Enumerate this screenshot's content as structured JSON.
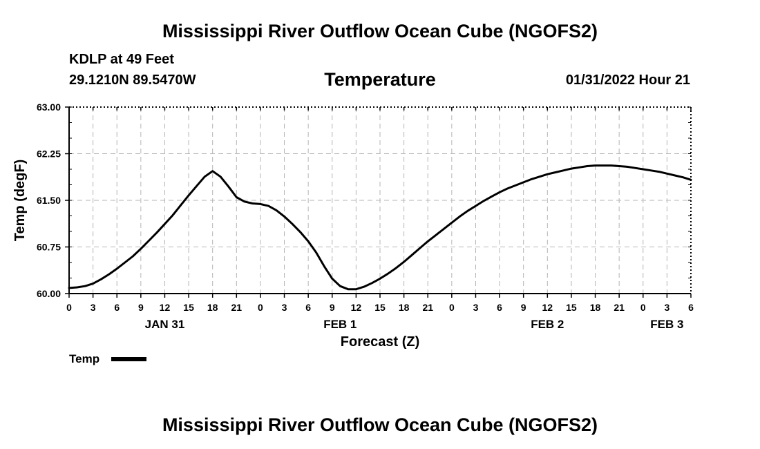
{
  "header": {
    "title": "Mississippi River Outflow Ocean Cube (NGOFS2)",
    "station": "KDLP at 49 Feet",
    "coords": "29.1210N  89.5470W",
    "chart_title": "Temperature",
    "datetime": "01/31/2022 Hour 21"
  },
  "footer": {
    "title": "Mississippi River Outflow Ocean Cube (NGOFS2)"
  },
  "colors": {
    "line": "#000000",
    "grid": "#b4b4b4"
  },
  "chart_data": {
    "type": "line",
    "title": "Temperature",
    "xlabel": "Forecast (Z)",
    "ylabel": "Temp (degF)",
    "xlim": [
      0,
      78
    ],
    "ylim": [
      60.0,
      63.0
    ],
    "y_ticks": [
      "60.00",
      "60.75",
      "61.50",
      "62.25",
      "63.00"
    ],
    "x_ticks": [
      "0",
      "3",
      "6",
      "9",
      "12",
      "15",
      "18",
      "21",
      "0",
      "3",
      "6",
      "9",
      "12",
      "15",
      "18",
      "21",
      "0",
      "3",
      "6",
      "9",
      "12",
      "15",
      "18",
      "21",
      "0",
      "3",
      "6"
    ],
    "day_labels": [
      {
        "label": "JAN 31",
        "hour": 12
      },
      {
        "label": "FEB 1",
        "hour": 34
      },
      {
        "label": "FEB 2",
        "hour": 60
      },
      {
        "label": "FEB 3",
        "hour": 75
      }
    ],
    "grid": true,
    "legend": {
      "position": "bottom-left",
      "entries": [
        "Temp"
      ]
    },
    "series": [
      {
        "name": "Temp",
        "x": [
          0,
          1,
          2,
          3,
          4,
          5,
          6,
          7,
          8,
          9,
          10,
          11,
          12,
          13,
          14,
          15,
          16,
          17,
          18,
          19,
          20,
          21,
          22,
          23,
          24,
          25,
          26,
          27,
          28,
          29,
          30,
          31,
          32,
          33,
          34,
          35,
          36,
          37,
          38,
          39,
          40,
          41,
          42,
          43,
          44,
          45,
          46,
          47,
          48,
          49,
          50,
          51,
          52,
          53,
          54,
          55,
          56,
          57,
          58,
          59,
          60,
          61,
          62,
          63,
          64,
          65,
          66,
          67,
          68,
          69,
          70,
          71,
          72,
          73,
          74,
          75,
          76,
          77,
          78
        ],
        "values": [
          60.09,
          60.1,
          60.12,
          60.16,
          60.23,
          60.31,
          60.4,
          60.5,
          60.6,
          60.72,
          60.85,
          60.98,
          61.12,
          61.26,
          61.42,
          61.58,
          61.73,
          61.88,
          61.97,
          61.88,
          61.72,
          61.55,
          61.48,
          61.45,
          61.44,
          61.41,
          61.34,
          61.24,
          61.12,
          60.99,
          60.84,
          60.66,
          60.44,
          60.24,
          60.12,
          60.07,
          60.07,
          60.11,
          60.17,
          60.24,
          60.32,
          60.41,
          60.51,
          60.62,
          60.73,
          60.84,
          60.94,
          61.04,
          61.14,
          61.24,
          61.33,
          61.41,
          61.49,
          61.56,
          61.63,
          61.69,
          61.74,
          61.79,
          61.84,
          61.88,
          61.92,
          61.95,
          61.98,
          62.01,
          62.03,
          62.05,
          62.06,
          62.06,
          62.06,
          62.05,
          62.04,
          62.02,
          62.0,
          61.98,
          61.96,
          61.93,
          61.9,
          61.87,
          61.83
        ]
      }
    ]
  }
}
